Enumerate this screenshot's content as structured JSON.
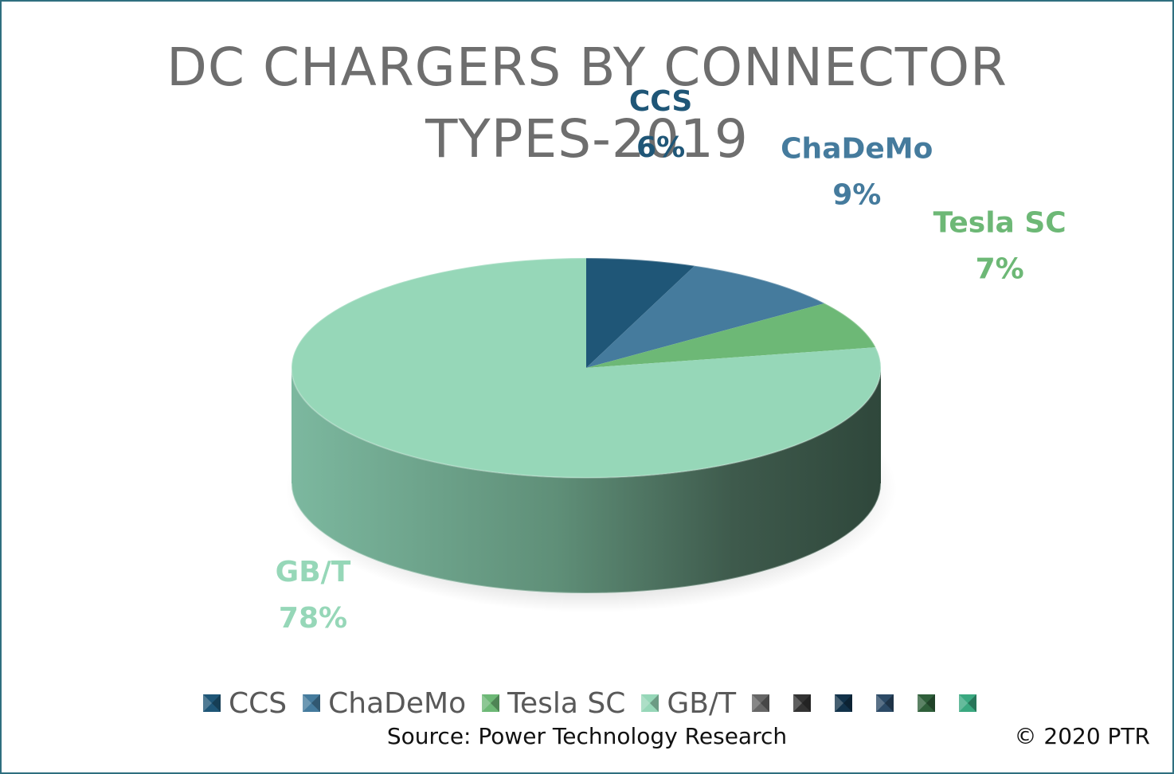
{
  "chart_data": {
    "type": "pie",
    "title": "DC CHARGERS BY CONNECTOR TYPES-2019",
    "categories": [
      "CCS",
      "ChaDeMo",
      "Tesla SC",
      "GB/T"
    ],
    "values": [
      6,
      9,
      7,
      78
    ],
    "value_labels": [
      "6%",
      "9%",
      "7%",
      "78%"
    ],
    "colors": [
      "#1f5677",
      "#457b9d",
      "#6db876",
      "#96d7b8"
    ],
    "legend_position": "bottom",
    "legend_extra_colors": [
      "#666666",
      "#333333",
      "#12324a",
      "#2c4a66",
      "#2f5f3a",
      "#3aa880"
    ]
  },
  "footer": {
    "source": "Source: Power Technology Research",
    "copyright": "© 2020 PTR"
  }
}
